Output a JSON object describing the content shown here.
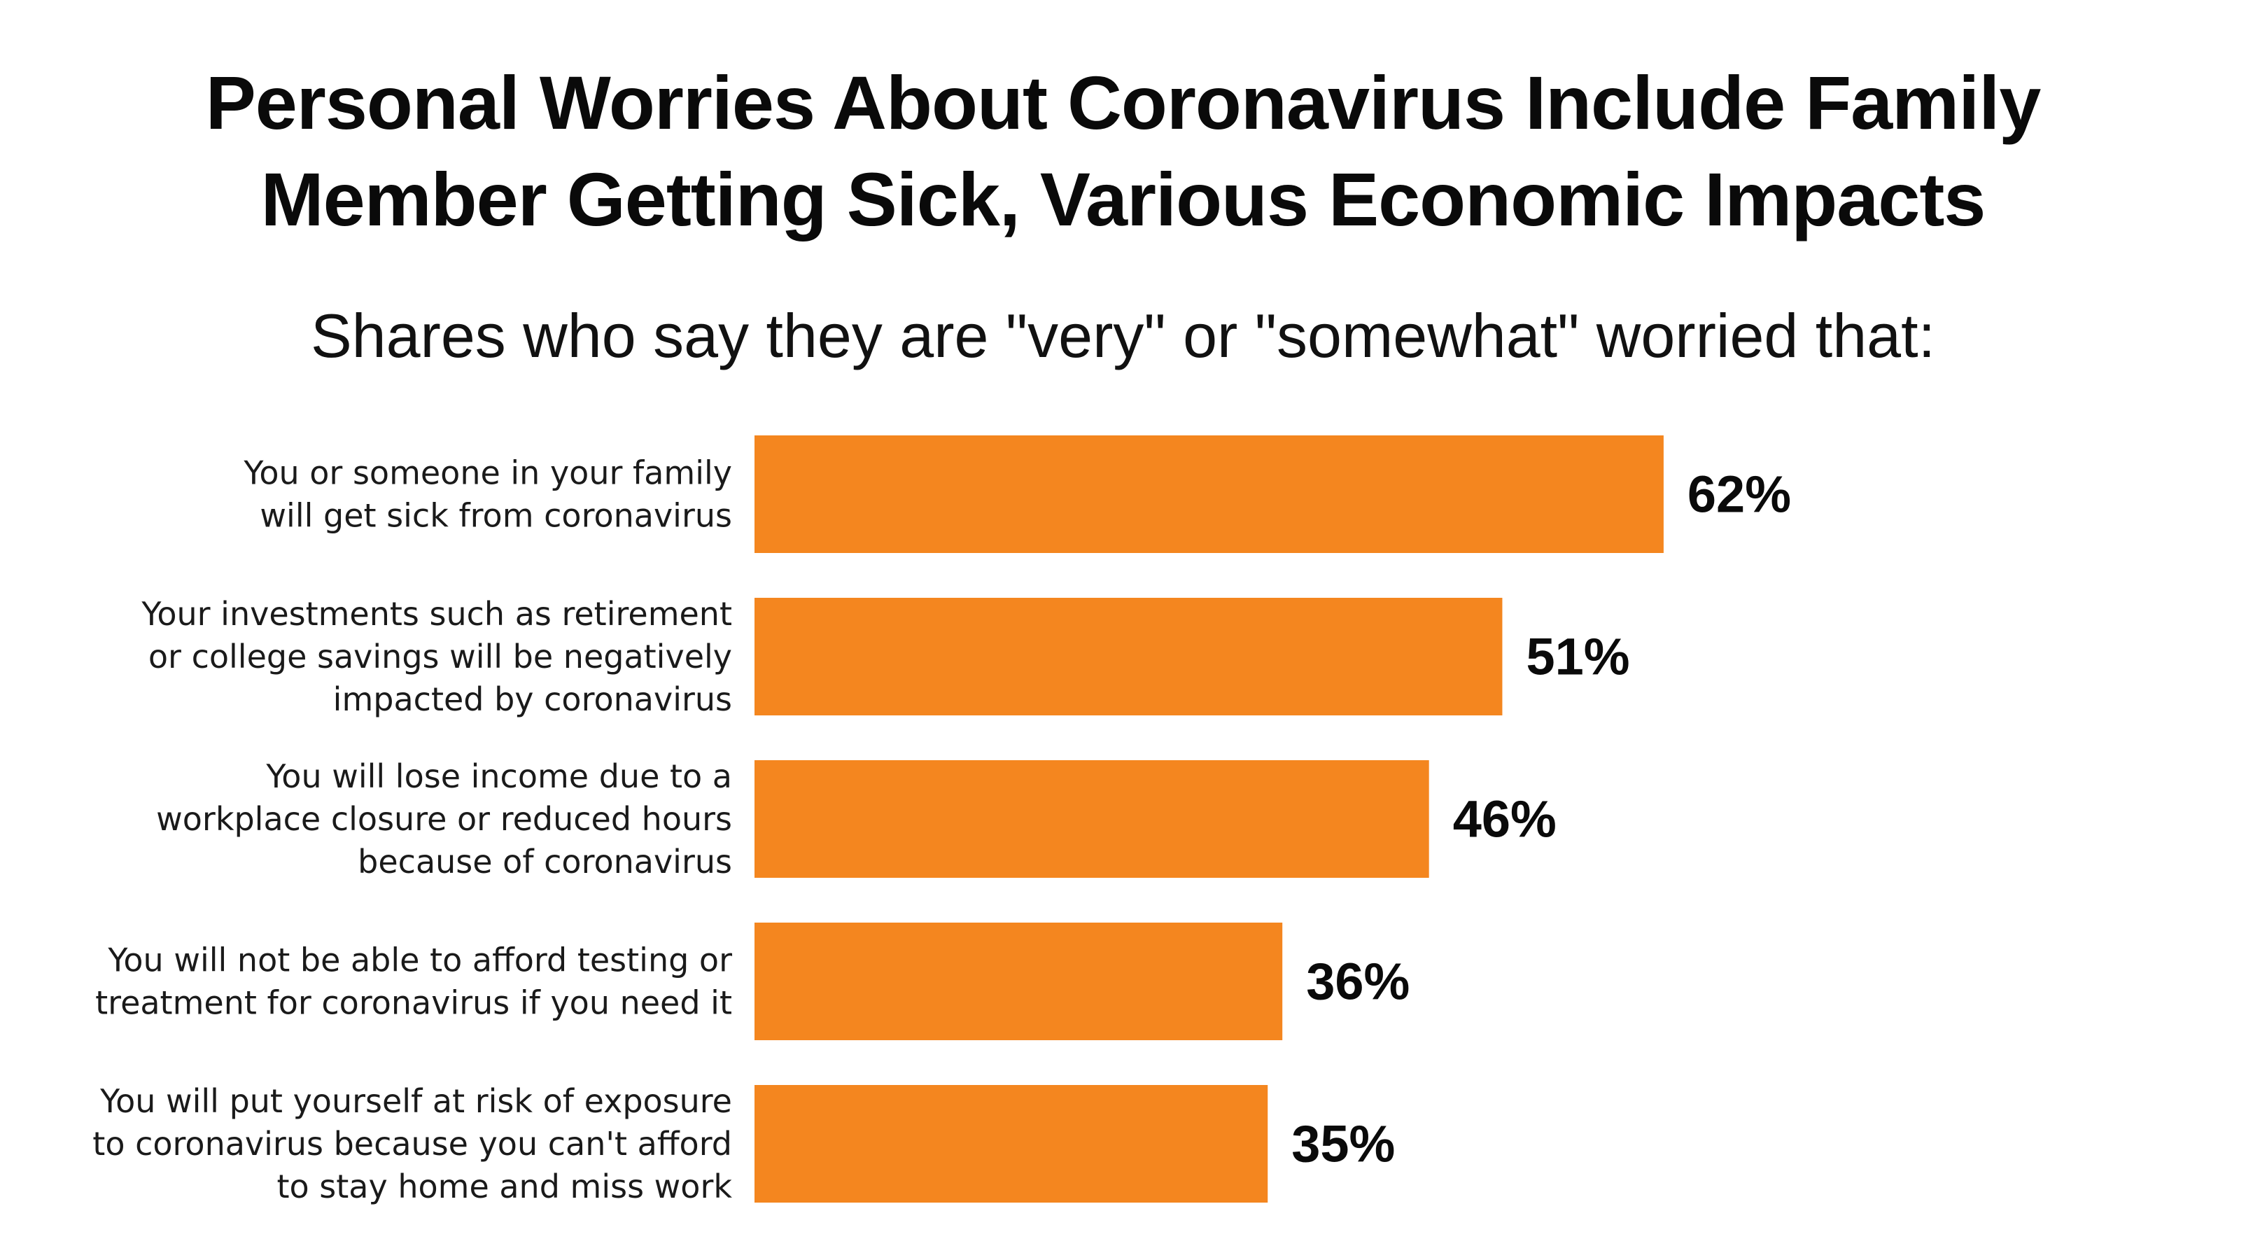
{
  "chart_data": {
    "type": "bar",
    "orientation": "horizontal",
    "title": "Personal Worries About Coronavirus Include Family Member Getting Sick, Various Economic Impacts",
    "title_lines": [
      "Personal Worries About Coronavirus Include Family",
      "Member Getting Sick, Various Economic Impacts"
    ],
    "subtitle": "Shares who say they are \"very\" or \"somewhat\" worried that:",
    "categories": [
      [
        "You or someone in your family",
        "will get sick from coronavirus"
      ],
      [
        "Your investments such as retirement",
        "or college savings will be negatively",
        "impacted by coronavirus"
      ],
      [
        "You will lose income due to a",
        "workplace closure or reduced hours",
        "because of coronavirus"
      ],
      [
        "You will not be able to afford testing or",
        "treatment for coronavirus if you need it"
      ],
      [
        "You will put yourself at risk of exposure",
        "to coronavirus because you can't afford",
        "to stay home and miss work"
      ]
    ],
    "values": [
      62,
      51,
      46,
      36,
      35
    ],
    "value_labels": [
      "62%",
      "51%",
      "46%",
      "36%",
      "35%"
    ],
    "bar_color": "#F4861F",
    "grid": false,
    "legend": "none"
  }
}
